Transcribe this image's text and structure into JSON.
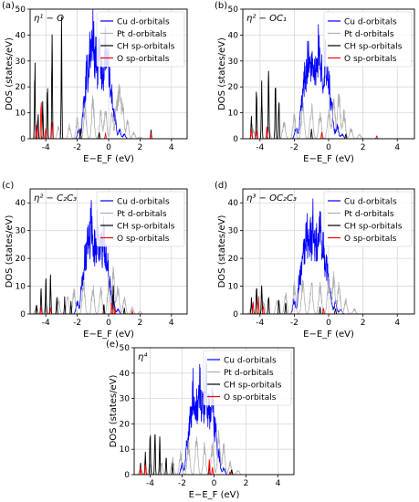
{
  "chart_data": [
    {
      "panel": "(a)",
      "label": "η¹ − O",
      "type": "line",
      "xlabel": "E−E_F (eV)",
      "ylabel": "DOS (states/eV)",
      "xlim": [
        -5,
        5
      ],
      "ylim": [
        0,
        50
      ],
      "xticks": [
        -4,
        -2,
        0,
        2,
        4
      ],
      "yticks": [
        0,
        10,
        20,
        30,
        40,
        50
      ],
      "grid": true,
      "legend": "top-right",
      "series": [
        {
          "name": "Cu d-orbitals",
          "color": "#0000ff",
          "peaks": [
            [
              -1.9,
              4
            ],
            [
              -1.6,
              15
            ],
            [
              -1.4,
              30
            ],
            [
              -1.2,
              42
            ],
            [
              -1.0,
              50
            ],
            [
              -0.8,
              36
            ],
            [
              -0.6,
              40
            ],
            [
              -0.4,
              30
            ],
            [
              -0.2,
              44
            ],
            [
              0.0,
              33
            ],
            [
              0.2,
              20
            ],
            [
              0.4,
              10
            ],
            [
              0.7,
              4
            ],
            [
              1.0,
              2
            ]
          ]
        },
        {
          "name": "Pt d-orbitals",
          "color": "#b0b0b0",
          "peaks": [
            [
              -4.6,
              3
            ],
            [
              -4.0,
              4
            ],
            [
              -3.2,
              5
            ],
            [
              -2.5,
              6
            ],
            [
              -2.0,
              9
            ],
            [
              -1.5,
              14
            ],
            [
              -1.0,
              18
            ],
            [
              -0.5,
              12
            ],
            [
              -0.2,
              14
            ],
            [
              0.2,
              12
            ],
            [
              0.5,
              18
            ],
            [
              0.7,
              22
            ],
            [
              0.9,
              16
            ],
            [
              1.2,
              8
            ],
            [
              1.6,
              3
            ],
            [
              2.0,
              1
            ]
          ]
        },
        {
          "name": "CH sp-orbitals",
          "color": "#000000",
          "peaks": [
            [
              -4.7,
              30
            ],
            [
              -4.5,
              10
            ],
            [
              -4.2,
              14
            ],
            [
              -3.9,
              20
            ],
            [
              -3.6,
              38
            ],
            [
              -3.0,
              40
            ],
            [
              -1.8,
              4
            ],
            [
              -0.6,
              2
            ],
            [
              2.7,
              3
            ]
          ]
        },
        {
          "name": "O sp-orbitals",
          "color": "#ff0000",
          "peaks": [
            [
              -4.6,
              5
            ],
            [
              -4.3,
              14
            ],
            [
              -4.0,
              4
            ],
            [
              -3.6,
              6
            ],
            [
              -0.2,
              2
            ],
            [
              2.7,
              2
            ]
          ]
        }
      ]
    },
    {
      "panel": "(b)",
      "label": "η² − OC₁",
      "type": "line",
      "xlabel": "E−E_F (eV)",
      "ylabel": "DOS (states/eV)",
      "xlim": [
        -5,
        5
      ],
      "ylim": [
        0,
        50
      ],
      "xticks": [
        -4,
        -2,
        0,
        2,
        4
      ],
      "yticks": [
        0,
        10,
        20,
        30,
        40,
        50
      ],
      "grid": true,
      "legend": "top-right",
      "series": [
        {
          "name": "Cu d-orbitals",
          "color": "#0000ff",
          "peaks": [
            [
              -1.9,
              5
            ],
            [
              -1.6,
              18
            ],
            [
              -1.4,
              28
            ],
            [
              -1.2,
              40
            ],
            [
              -1.0,
              36
            ],
            [
              -0.8,
              30
            ],
            [
              -0.6,
              42
            ],
            [
              -0.4,
              32
            ],
            [
              -0.2,
              36
            ],
            [
              0.0,
              28
            ],
            [
              0.2,
              14
            ],
            [
              0.5,
              6
            ],
            [
              0.8,
              2
            ]
          ]
        },
        {
          "name": "Pt d-orbitals",
          "color": "#b0b0b0",
          "peaks": [
            [
              -4.4,
              4
            ],
            [
              -3.5,
              5
            ],
            [
              -2.6,
              8
            ],
            [
              -2.0,
              10
            ],
            [
              -1.5,
              15
            ],
            [
              -1.0,
              16
            ],
            [
              -0.5,
              12
            ],
            [
              0.0,
              14
            ],
            [
              0.3,
              16
            ],
            [
              0.6,
              20
            ],
            [
              0.9,
              12
            ],
            [
              1.3,
              5
            ],
            [
              1.8,
              2
            ]
          ]
        },
        {
          "name": "CH sp-orbitals",
          "color": "#000000",
          "peaks": [
            [
              -4.5,
              8
            ],
            [
              -4.2,
              17
            ],
            [
              -3.9,
              20
            ],
            [
              -3.5,
              22
            ],
            [
              -3.1,
              20
            ],
            [
              -2.9,
              14
            ],
            [
              -1.0,
              3
            ],
            [
              1.0,
              2
            ]
          ]
        },
        {
          "name": "O sp-orbitals",
          "color": "#ff0000",
          "peaks": [
            [
              -4.5,
              4
            ],
            [
              -4.2,
              3
            ],
            [
              -3.6,
              4
            ],
            [
              -0.4,
              2
            ],
            [
              2.8,
              1
            ]
          ]
        }
      ]
    },
    {
      "panel": "(c)",
      "label": "η² − C₂C₃",
      "type": "line",
      "xlabel": "E−E_F (eV)",
      "ylabel": "DOS (states/eV)",
      "xlim": [
        -5,
        5
      ],
      "ylim": [
        0,
        45
      ],
      "xticks": [
        -4,
        -2,
        0,
        2,
        4
      ],
      "yticks": [
        0,
        10,
        20,
        30,
        40
      ],
      "grid": true,
      "legend": "top-right",
      "series": [
        {
          "name": "Cu d-orbitals",
          "color": "#0000ff",
          "peaks": [
            [
              -2.0,
              5
            ],
            [
              -1.7,
              15
            ],
            [
              -1.5,
              25
            ],
            [
              -1.3,
              35
            ],
            [
              -1.1,
              40
            ],
            [
              -0.9,
              28
            ],
            [
              -0.7,
              38
            ],
            [
              -0.5,
              30
            ],
            [
              -0.3,
              34
            ],
            [
              -0.1,
              24
            ],
            [
              0.1,
              12
            ],
            [
              0.3,
              6
            ],
            [
              0.6,
              2
            ]
          ]
        },
        {
          "name": "Pt d-orbitals",
          "color": "#b0b0b0",
          "peaks": [
            [
              -4.6,
              3
            ],
            [
              -4.0,
              4
            ],
            [
              -3.2,
              6
            ],
            [
              -2.6,
              7
            ],
            [
              -2.2,
              10
            ],
            [
              -1.6,
              14
            ],
            [
              -1.0,
              12
            ],
            [
              -0.5,
              11
            ],
            [
              0.0,
              14
            ],
            [
              0.3,
              18
            ],
            [
              0.6,
              12
            ],
            [
              1.0,
              7
            ],
            [
              1.5,
              3
            ],
            [
              2.0,
              1
            ]
          ]
        },
        {
          "name": "CH sp-orbitals",
          "color": "#000000",
          "peaks": [
            [
              -4.6,
              3
            ],
            [
              -4.3,
              8
            ],
            [
              -4.0,
              12
            ],
            [
              -3.7,
              14
            ],
            [
              -3.3,
              6
            ],
            [
              -2.8,
              5
            ],
            [
              -2.4,
              4
            ],
            [
              -0.3,
              3
            ],
            [
              0.3,
              10
            ],
            [
              1.0,
              2
            ]
          ]
        },
        {
          "name": "O sp-orbitals",
          "color": "#ff0000",
          "peaks": [
            [
              -4.3,
              2
            ],
            [
              -3.7,
              2
            ],
            [
              0.2,
              4
            ],
            [
              0.4,
              2
            ],
            [
              1.5,
              1
            ]
          ]
        }
      ]
    },
    {
      "panel": "(d)",
      "label": "η³ − OC₂C₃",
      "type": "line",
      "xlabel": "E−E_F (eV)",
      "ylabel": "DOS (states/eV)",
      "xlim": [
        -5,
        5
      ],
      "ylim": [
        0,
        45
      ],
      "xticks": [
        -4,
        -2,
        0,
        2,
        4
      ],
      "yticks": [
        0,
        10,
        20,
        30,
        40
      ],
      "grid": true,
      "legend": "top-right",
      "series": [
        {
          "name": "Cu d-orbitals",
          "color": "#0000ff",
          "peaks": [
            [
              -2.0,
              6
            ],
            [
              -1.7,
              16
            ],
            [
              -1.5,
              26
            ],
            [
              -1.3,
              38
            ],
            [
              -1.1,
              34
            ],
            [
              -0.9,
              40
            ],
            [
              -0.7,
              30
            ],
            [
              -0.5,
              36
            ],
            [
              -0.3,
              28
            ],
            [
              -0.1,
              20
            ],
            [
              0.1,
              10
            ],
            [
              0.4,
              5
            ],
            [
              0.7,
              2
            ]
          ]
        },
        {
          "name": "Pt d-orbitals",
          "color": "#b0b0b0",
          "peaks": [
            [
              -4.5,
              3
            ],
            [
              -3.8,
              5
            ],
            [
              -3.0,
              6
            ],
            [
              -2.5,
              8
            ],
            [
              -2.0,
              12
            ],
            [
              -1.5,
              14
            ],
            [
              -1.0,
              13
            ],
            [
              -0.5,
              12
            ],
            [
              0.0,
              14
            ],
            [
              0.3,
              16
            ],
            [
              0.6,
              12
            ],
            [
              1.0,
              6
            ],
            [
              1.5,
              2
            ]
          ]
        },
        {
          "name": "CH sp-orbitals",
          "color": "#000000",
          "peaks": [
            [
              -4.5,
              5
            ],
            [
              -4.2,
              10
            ],
            [
              -3.9,
              9
            ],
            [
              -3.5,
              6
            ],
            [
              -2.9,
              5
            ],
            [
              -2.5,
              4
            ],
            [
              -0.5,
              2
            ],
            [
              0.4,
              2
            ]
          ]
        },
        {
          "name": "O sp-orbitals",
          "color": "#ff0000",
          "peaks": [
            [
              -4.4,
              4
            ],
            [
              -4.1,
              6
            ],
            [
              -3.8,
              3
            ],
            [
              -0.3,
              2
            ]
          ]
        }
      ]
    },
    {
      "panel": "(e)",
      "label": "η⁴",
      "type": "line",
      "xlabel": "E−E_F (eV)",
      "ylabel": "DOS (states/eV)",
      "xlim": [
        -5,
        5
      ],
      "ylim": [
        0,
        50
      ],
      "xticks": [
        -4,
        -2,
        0,
        2,
        4
      ],
      "yticks": [
        0,
        10,
        20,
        30,
        40,
        50
      ],
      "grid": true,
      "legend": "top-right",
      "series": [
        {
          "name": "Cu d-orbitals",
          "color": "#0000ff",
          "peaks": [
            [
              -2.0,
              5
            ],
            [
              -1.7,
              14
            ],
            [
              -1.5,
              25
            ],
            [
              -1.3,
              40
            ],
            [
              -1.1,
              30
            ],
            [
              -0.9,
              47
            ],
            [
              -0.7,
              32
            ],
            [
              -0.5,
              45
            ],
            [
              -0.3,
              30
            ],
            [
              -0.1,
              36
            ],
            [
              0.1,
              20
            ],
            [
              0.3,
              10
            ],
            [
              0.6,
              3
            ]
          ]
        },
        {
          "name": "Pt d-orbitals",
          "color": "#b0b0b0",
          "peaks": [
            [
              -4.6,
              3
            ],
            [
              -4.0,
              5
            ],
            [
              -3.3,
              6
            ],
            [
              -2.6,
              8
            ],
            [
              -2.1,
              10
            ],
            [
              -1.6,
              15
            ],
            [
              -1.1,
              18
            ],
            [
              -0.6,
              13
            ],
            [
              -0.1,
              14
            ],
            [
              0.3,
              18
            ],
            [
              0.6,
              14
            ],
            [
              1.0,
              6
            ],
            [
              1.5,
              2
            ]
          ]
        },
        {
          "name": "CH sp-orbitals",
          "color": "#000000",
          "peaks": [
            [
              -4.6,
              4
            ],
            [
              -4.3,
              8
            ],
            [
              -4.0,
              15
            ],
            [
              -3.7,
              18
            ],
            [
              -3.4,
              12
            ],
            [
              -3.0,
              6
            ],
            [
              -2.6,
              4
            ],
            [
              -0.3,
              3
            ],
            [
              1.1,
              2
            ]
          ]
        },
        {
          "name": "O sp-orbitals",
          "color": "#ff0000",
          "peaks": [
            [
              -4.6,
              3
            ],
            [
              -4.3,
              4
            ],
            [
              -0.3,
              6
            ],
            [
              -0.1,
              3
            ],
            [
              1.0,
              1
            ]
          ]
        }
      ]
    }
  ]
}
